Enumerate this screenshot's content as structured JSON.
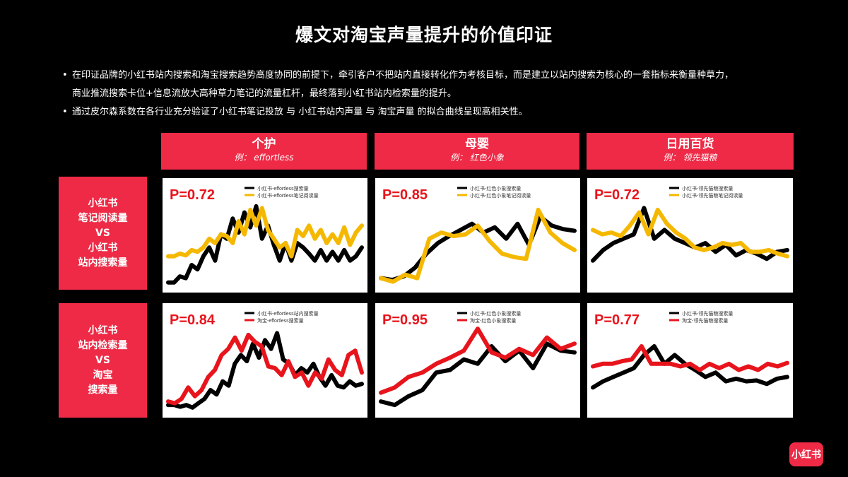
{
  "title": "爆文对淘宝声量提升的价值印证",
  "bullets": [
    "在印证品牌的小红书站内搜索和淘宝搜索趋势高度协同的前提下，牵引客户不把站内直接转化作为考核目标，而是建立以站内搜索为核心的一套指标来衡量种草力，商业推流搜索卡位+信息流放大高种草力笔记的流量杠杆，最终落到小红书站内检索量的提升。",
    "通过皮尔森系数在各行业充分验证了小红书笔记投放 与 小红书站内声量 与 淘宝声量 的拟合曲线呈现高相关性。"
  ],
  "columns": [
    {
      "name": "个护",
      "example": "例： effortless"
    },
    {
      "name": "母婴",
      "example": "例： 红色小象"
    },
    {
      "name": "日用百货",
      "example": "例： 领先猫粮"
    }
  ],
  "rows": [
    {
      "lines": [
        "小红书",
        "笔记阅读量",
        "VS",
        "小红书",
        "站内搜索量"
      ]
    },
    {
      "lines": [
        "小红书",
        "站内检索量",
        "VS",
        "淘宝",
        "搜索量"
      ]
    }
  ],
  "logo": "小红书",
  "colors": {
    "accent": "#ee2a46",
    "black_series": "#000000",
    "yellow_series": "#f5b800",
    "red_series": "#e8141c"
  },
  "chart_data": [
    {
      "type": "line",
      "p_label": "P=0.72",
      "ylim": [
        0,
        100
      ],
      "legend": [
        "小红书-effortless搜索量",
        "小红书-effortless笔记阅读量"
      ],
      "series": [
        {
          "color": "black",
          "values": [
            5,
            5,
            12,
            10,
            25,
            20,
            35,
            45,
            30,
            60,
            55,
            78,
            62,
            85,
            68,
            92,
            55,
            70,
            48,
            30,
            50,
            30,
            50,
            45,
            38,
            30,
            42,
            30,
            40,
            30,
            42,
            30,
            35,
            45
          ]
        },
        {
          "color": "yellow",
          "values": [
            35,
            35,
            38,
            36,
            42,
            40,
            45,
            55,
            50,
            60,
            58,
            50,
            75,
            60,
            88,
            70,
            90,
            65,
            55,
            45,
            50,
            35,
            65,
            58,
            70,
            55,
            65,
            50,
            60,
            50,
            68,
            48,
            62,
            70
          ]
        }
      ]
    },
    {
      "type": "line",
      "p_label": "P=0.85",
      "ylim": [
        0,
        100
      ],
      "legend": [
        "小红书-红色小象搜索量",
        "小红书-红色小象笔记阅读量"
      ],
      "series": [
        {
          "color": "black",
          "values": [
            10,
            8,
            12,
            22,
            38,
            50,
            58,
            65,
            72,
            62,
            68,
            55,
            72,
            48,
            80,
            70,
            66,
            64
          ]
        },
        {
          "color": "yellow",
          "values": [
            10,
            6,
            14,
            10,
            55,
            62,
            58,
            60,
            70,
            52,
            38,
            34,
            32,
            88,
            62,
            50,
            42
          ]
        }
      ]
    },
    {
      "type": "line",
      "p_label": "P=0.72",
      "ylim": [
        0,
        100
      ],
      "legend": [
        "小红书-领先猫粮搜索量",
        "小红书-领先猫粮笔记阅读量"
      ],
      "series": [
        {
          "color": "black",
          "values": [
            30,
            42,
            50,
            55,
            60,
            90,
            55,
            65,
            55,
            50,
            45,
            50,
            40,
            48,
            36,
            42,
            38,
            32,
            40,
            42
          ]
        },
        {
          "color": "yellow",
          "values": [
            65,
            60,
            62,
            58,
            70,
            85,
            60,
            88,
            72,
            62,
            55,
            45,
            42,
            45,
            50,
            48,
            50,
            40,
            40,
            42,
            38,
            35
          ]
        }
      ]
    },
    {
      "type": "line",
      "p_label": "P=0.84",
      "ylim": [
        0,
        100
      ],
      "legend": [
        "小红书-effortless站内搜索量",
        "淘宝-effortless搜索量"
      ],
      "series": [
        {
          "color": "black",
          "values": [
            8,
            8,
            6,
            8,
            5,
            10,
            15,
            25,
            20,
            35,
            30,
            55,
            65,
            58,
            78,
            62,
            82,
            72,
            90,
            60,
            55,
            42,
            50,
            45,
            55,
            40,
            30,
            42,
            30,
            28,
            35,
            30,
            32
          ]
        },
        {
          "color": "red",
          "values": [
            12,
            10,
            15,
            28,
            18,
            25,
            40,
            48,
            65,
            72,
            85,
            70,
            88,
            80,
            75,
            52,
            50,
            42,
            58,
            40,
            45,
            30,
            45,
            38,
            60,
            48,
            42,
            65,
            70,
            45
          ]
        }
      ]
    },
    {
      "type": "line",
      "p_label": "P=0.95",
      "ylim": [
        0,
        100
      ],
      "legend": [
        "小红书-红色小象搜索量",
        "淘宝-红色小象搜索量"
      ],
      "series": [
        {
          "color": "black",
          "values": [
            12,
            8,
            18,
            25,
            45,
            48,
            60,
            55,
            75,
            58,
            70,
            50,
            78,
            70,
            68
          ]
        },
        {
          "color": "red",
          "values": [
            22,
            28,
            40,
            45,
            55,
            62,
            70,
            95,
            68,
            62,
            72,
            65,
            85,
            72,
            78
          ]
        }
      ]
    },
    {
      "type": "line",
      "p_label": "P=0.77",
      "ylim": [
        0,
        100
      ],
      "legend": [
        "小红书-领先猫粮搜索量",
        "淘宝-领先猫粮搜索量"
      ],
      "series": [
        {
          "color": "black",
          "values": [
            28,
            35,
            40,
            45,
            50,
            65,
            75,
            55,
            65,
            55,
            48,
            40,
            45,
            35,
            38,
            35,
            36,
            32,
            38,
            40
          ]
        },
        {
          "color": "red",
          "values": [
            52,
            55,
            55,
            58,
            60,
            75,
            55,
            55,
            55,
            52,
            55,
            48,
            55,
            50,
            55,
            48,
            52,
            48,
            55,
            52,
            56
          ]
        }
      ]
    }
  ]
}
